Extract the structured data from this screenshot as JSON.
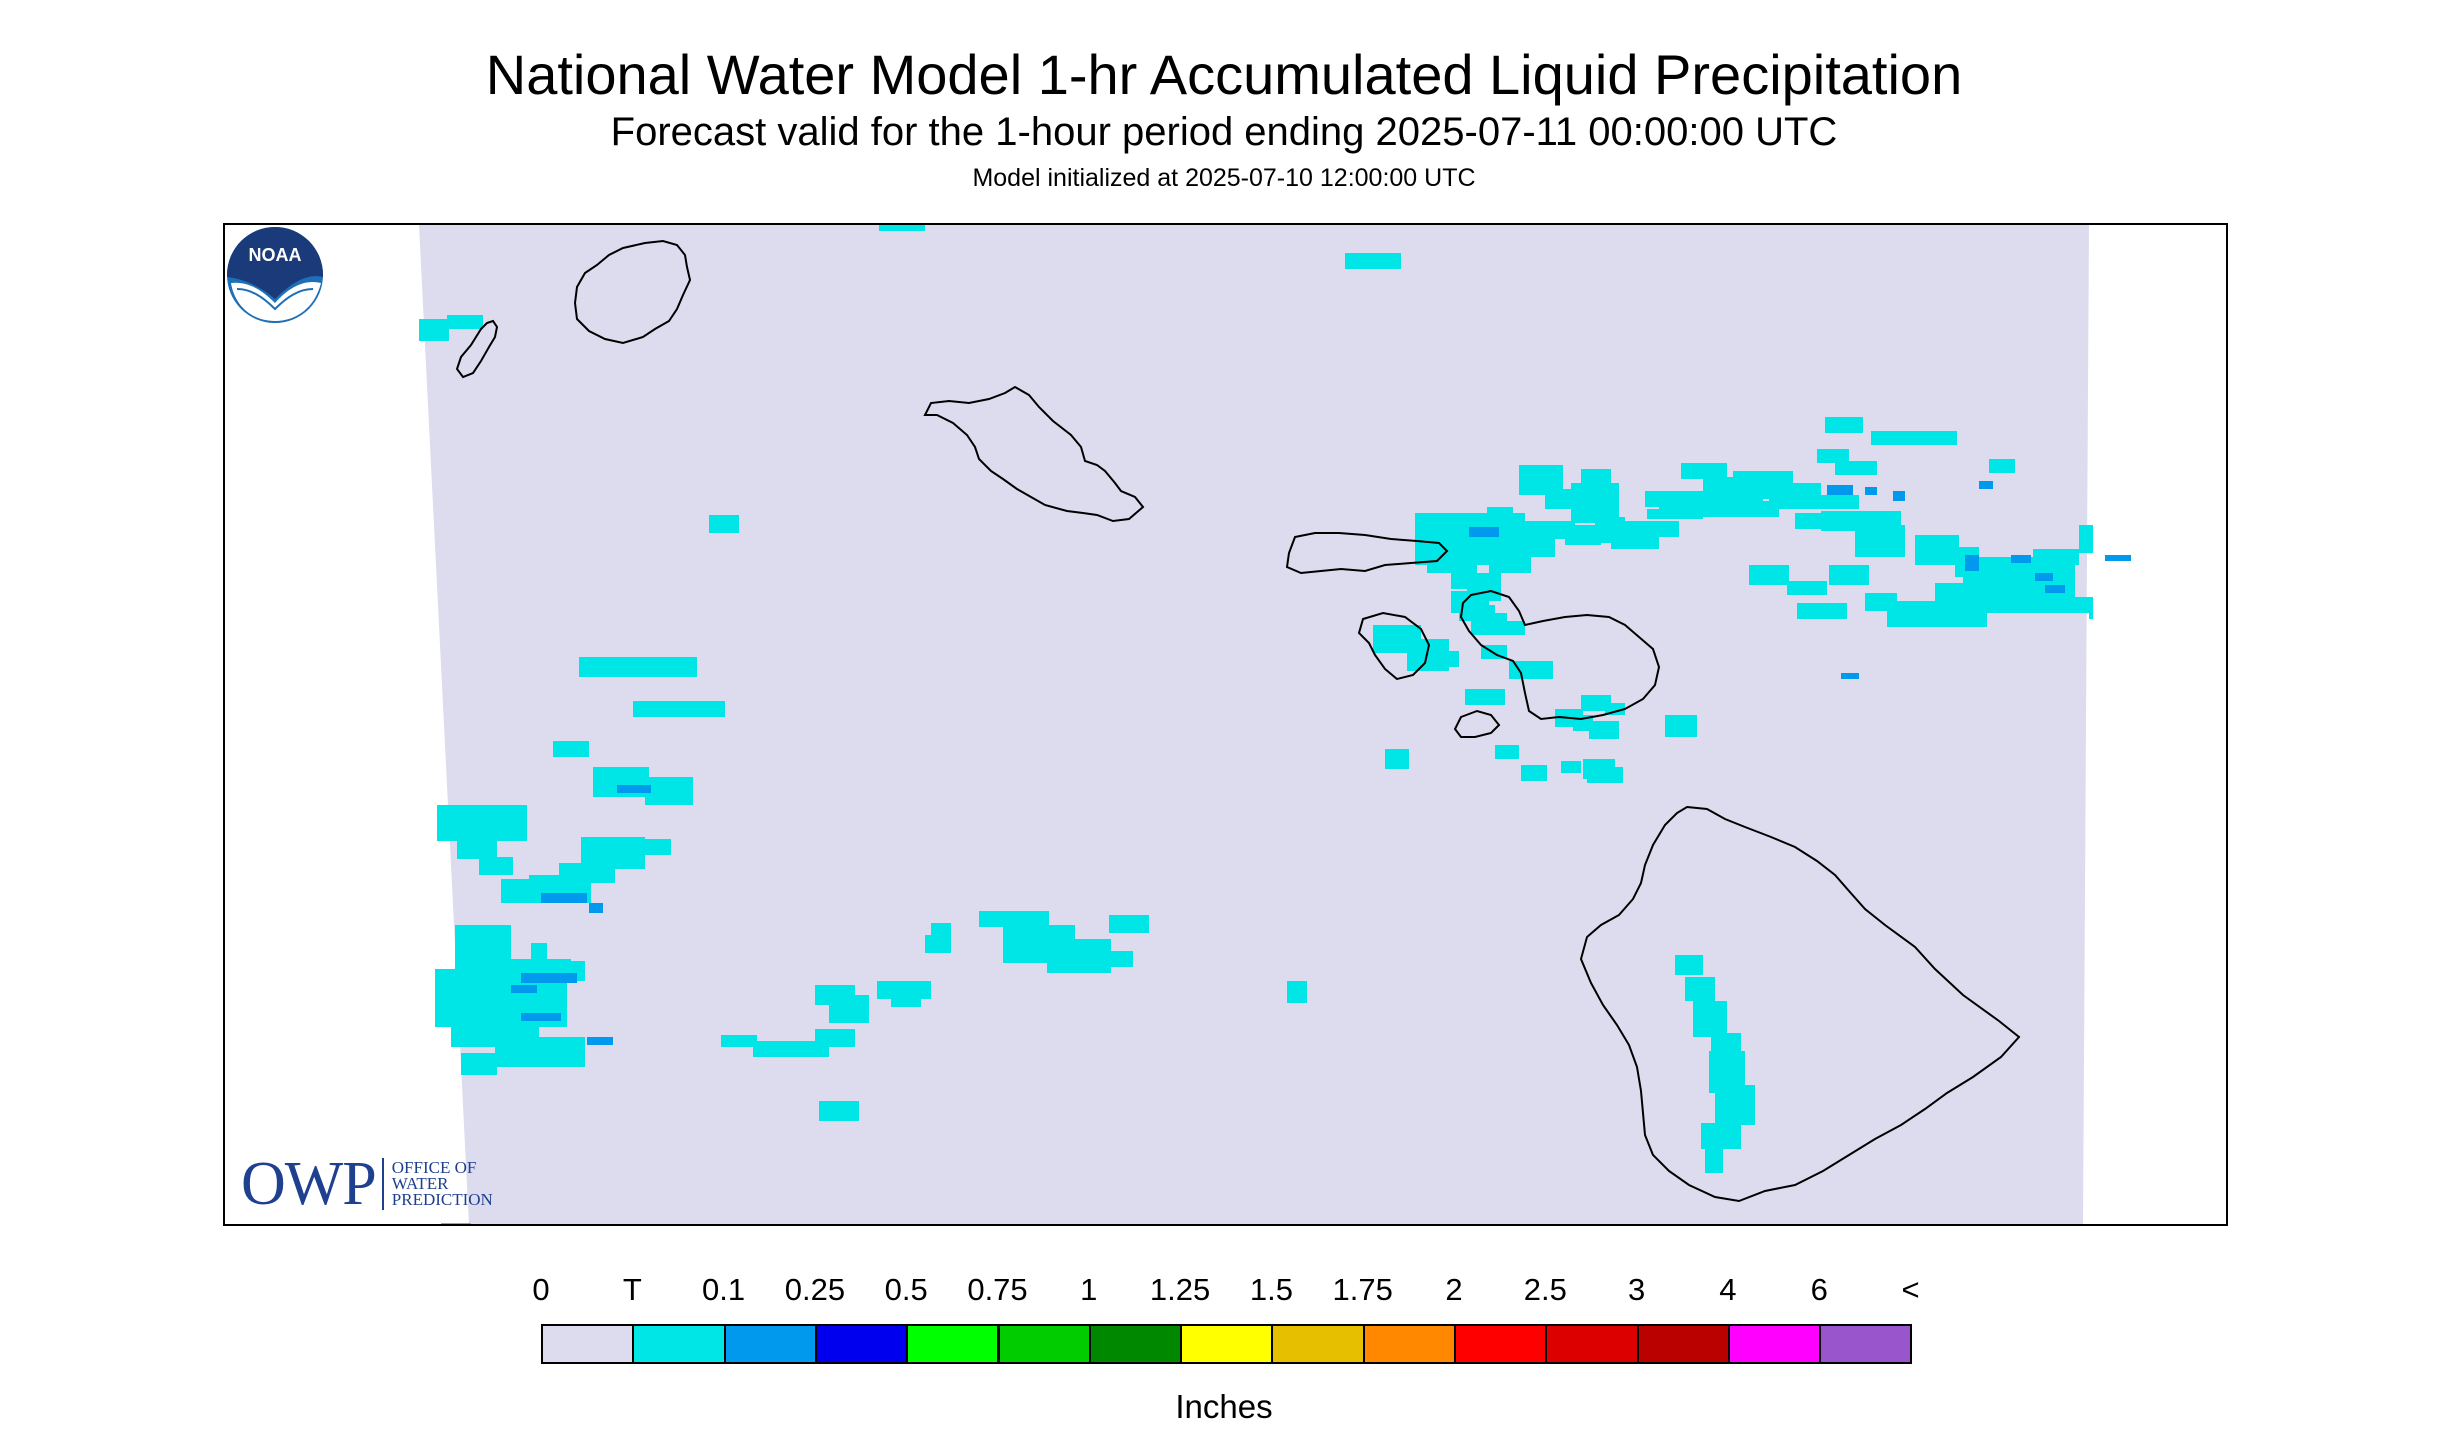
{
  "header": {
    "title": "National Water Model 1-hr Accumulated Liquid Precipitation",
    "subtitle": "Forecast valid for the 1-hour period ending 2025-07-11 00:00:00 UTC",
    "init": "Model initialized at 2025-07-10 12:00:00 UTC"
  },
  "logos": {
    "owp_big": "OWP",
    "owp_line1": "OFFICE OF",
    "owp_line2": "WATER",
    "owp_line3": "PREDICTION",
    "noaa": "NOAA"
  },
  "legend": {
    "units": "Inches",
    "labels": [
      "0",
      "T",
      "0.1",
      "0.25",
      "0.5",
      "0.75",
      "1",
      "1.25",
      "1.5",
      "1.75",
      "2",
      "2.5",
      "3",
      "4",
      "6",
      "<"
    ],
    "colors": [
      "#dcdcee",
      "#00e6e6",
      "#0099ee",
      "#0000ee",
      "#00ff00",
      "#00cc00",
      "#008800",
      "#ffff00",
      "#e6c000",
      "#ff8800",
      "#ff0000",
      "#dd0000",
      "#bb0000",
      "#ff00ff",
      "#9955cc"
    ]
  },
  "map": {
    "background_color": "#dcdcee",
    "trace_color": "#00e6e6",
    "light_color": "#0099ee",
    "islands": [
      "Kauai",
      "Niihau",
      "Oahu",
      "Molokai",
      "Lanai",
      "Maui",
      "Kahoolawe",
      "Hawaii"
    ]
  }
}
